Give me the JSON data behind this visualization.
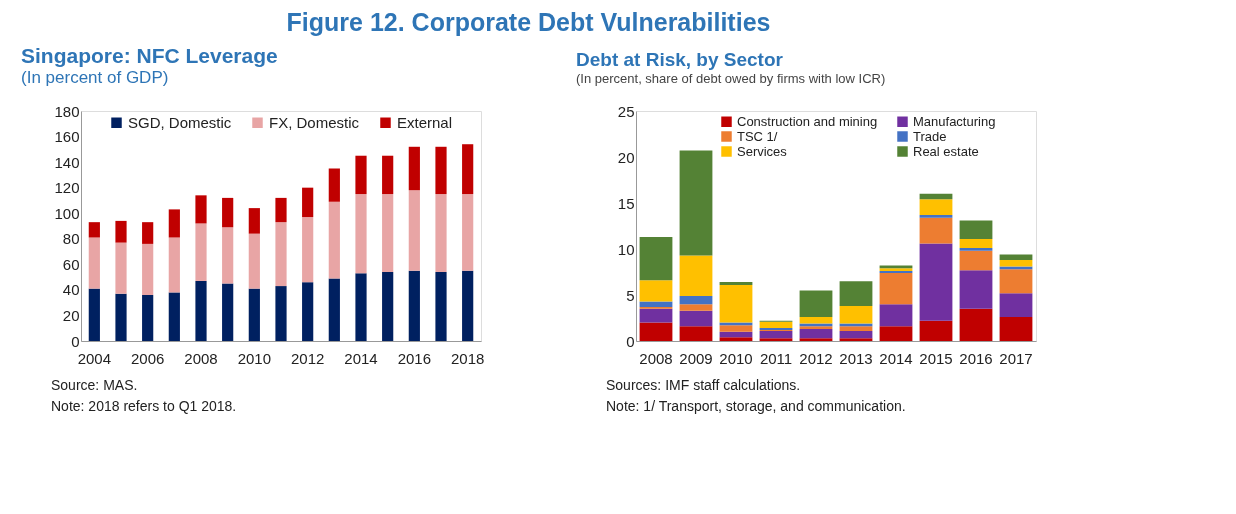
{
  "chart_data": [
    {
      "type": "bar",
      "title": "Singapore: NFC Leverage",
      "subtitle": "(In percent of GDP)",
      "stacked": true,
      "legend": "top",
      "grid": false,
      "categories": [
        "2004",
        null,
        "2006",
        null,
        "2008",
        null,
        "2010",
        null,
        "2012",
        null,
        "2014",
        null,
        "2016",
        null,
        "2018"
      ],
      "ylim": [
        0,
        180
      ],
      "yticks": [
        0,
        20,
        40,
        60,
        80,
        100,
        120,
        140,
        160,
        180
      ],
      "series": [
        {
          "name": "SGD, Domestic",
          "color": "#002060",
          "values": [
            41,
            37,
            36,
            38,
            47,
            45,
            41,
            43,
            46,
            49,
            53,
            54,
            55,
            54,
            55
          ]
        },
        {
          "name": "FX, Domestic",
          "color": "#e8a5a5",
          "values": [
            40,
            40,
            40,
            43,
            45,
            44,
            43,
            50,
            51,
            60,
            62,
            61,
            63,
            61,
            60
          ]
        },
        {
          "name": "External",
          "color": "#c00000",
          "values": [
            12,
            17,
            17,
            22,
            22,
            23,
            20,
            19,
            23,
            26,
            30,
            30,
            34,
            37,
            39
          ]
        }
      ],
      "annotations": [
        "Figure 12. Corporate Debt Vulnerabilities",
        "Source: MAS.",
        "Note: 2018 refers to Q1 2018."
      ]
    },
    {
      "type": "bar",
      "title": "Debt at Risk, by Sector",
      "subtitle": "(In percent, share of debt owed by firms with low ICR)",
      "stacked": true,
      "legend": "top",
      "grid": false,
      "categories": [
        "2008",
        "2009",
        "2010",
        "2011",
        "2012",
        "2013",
        "2014",
        "2015",
        "2016",
        "2017"
      ],
      "ylim": [
        0,
        25
      ],
      "yticks": [
        0,
        5,
        10,
        15,
        20,
        25
      ],
      "series": [
        {
          "name": "Construction and mining",
          "color": "#c00000",
          "values": [
            2.0,
            1.6,
            0.4,
            0.3,
            0.3,
            0.3,
            1.6,
            2.2,
            3.5,
            2.6
          ]
        },
        {
          "name": "Manufacturing",
          "color": "#7030a0",
          "values": [
            1.5,
            1.7,
            0.6,
            0.8,
            1.0,
            0.8,
            2.4,
            8.4,
            4.2,
            2.6
          ]
        },
        {
          "name": "TSC 1/",
          "color": "#ed7d31",
          "values": [
            0.2,
            0.7,
            0.7,
            0.1,
            0.3,
            0.5,
            3.4,
            2.8,
            2.1,
            2.6
          ]
        },
        {
          "name": "Trade",
          "color": "#4472c4",
          "values": [
            0.6,
            0.9,
            0.3,
            0.2,
            0.3,
            0.3,
            0.2,
            0.3,
            0.3,
            0.3
          ]
        },
        {
          "name": "Services",
          "color": "#ffc000",
          "values": [
            2.3,
            4.4,
            4.1,
            0.7,
            0.7,
            1.9,
            0.3,
            1.7,
            1.0,
            0.7
          ]
        },
        {
          "name": "Real estate",
          "color": "#548235",
          "values": [
            4.7,
            11.4,
            0.3,
            0.1,
            2.9,
            2.7,
            0.3,
            0.6,
            2.0,
            0.6
          ]
        }
      ],
      "annotations": [
        "Sources: IMF staff calculations.",
        "Note: 1/ Transport, storage, and communication."
      ]
    }
  ]
}
